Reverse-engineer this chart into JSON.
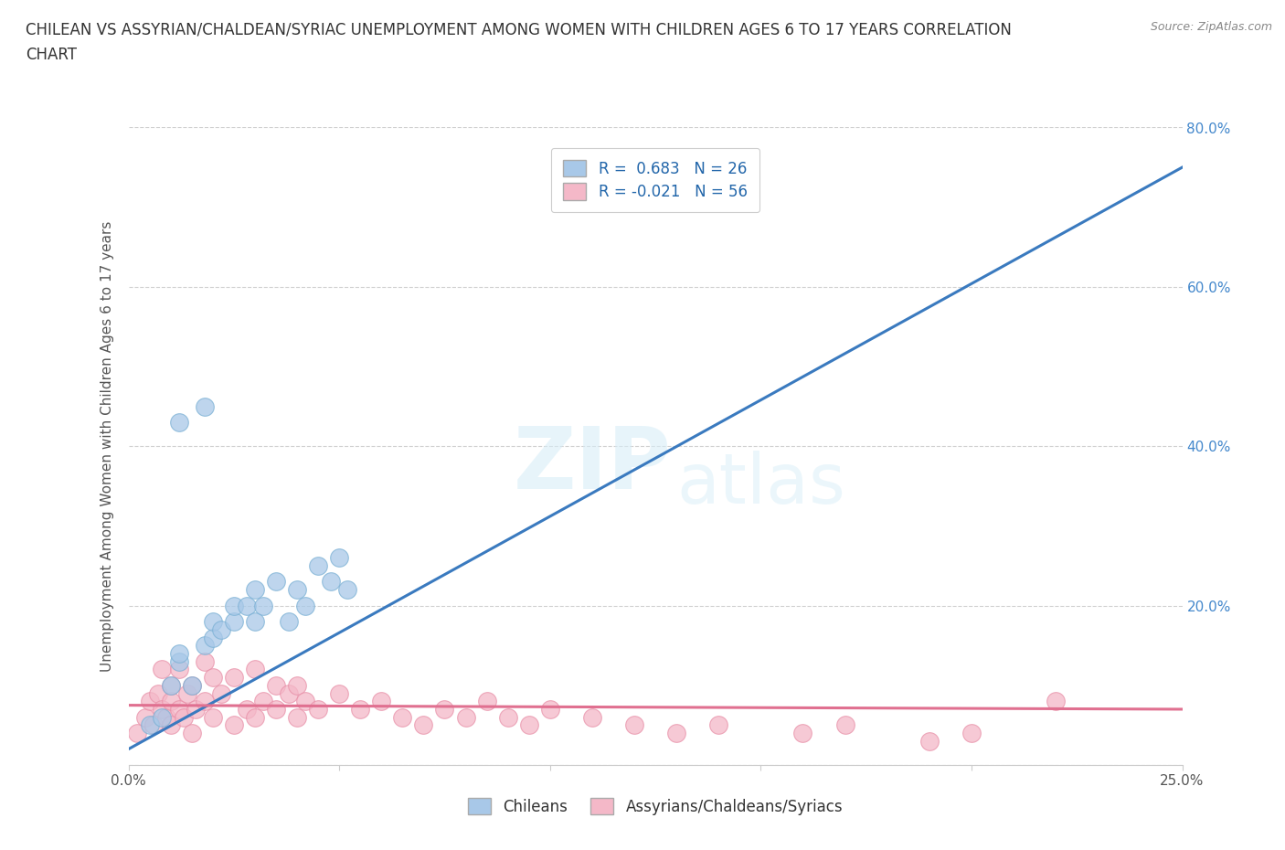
{
  "title_line1": "CHILEAN VS ASSYRIAN/CHALDEAN/SYRIAC UNEMPLOYMENT AMONG WOMEN WITH CHILDREN AGES 6 TO 17 YEARS CORRELATION",
  "title_line2": "CHART",
  "source": "Source: ZipAtlas.com",
  "ylabel": "Unemployment Among Women with Children Ages 6 to 17 years",
  "xlim": [
    0.0,
    0.25
  ],
  "ylim": [
    0.0,
    0.8
  ],
  "xticks": [
    0.0,
    0.05,
    0.1,
    0.15,
    0.2,
    0.25
  ],
  "xticklabels": [
    "0.0%",
    "",
    "",
    "",
    "",
    "25.0%"
  ],
  "yticks": [
    0.0,
    0.2,
    0.4,
    0.6,
    0.8
  ],
  "yticklabels": [
    "",
    "20.0%",
    "40.0%",
    "60.0%",
    "80.0%"
  ],
  "blue_color": "#a8c8e8",
  "pink_color": "#f4b8c8",
  "blue_edge_color": "#7ab0d4",
  "pink_edge_color": "#e890a8",
  "blue_line_color": "#3a7abf",
  "pink_line_color": "#e07090",
  "R_blue": 0.683,
  "N_blue": 26,
  "R_pink": -0.021,
  "N_pink": 56,
  "legend_label_blue": "Chileans",
  "legend_label_pink": "Assyrians/Chaldeans/Syriacs",
  "watermark_zip": "ZIP",
  "watermark_atlas": "atlas",
  "blue_scatter_x": [
    0.005,
    0.008,
    0.01,
    0.012,
    0.012,
    0.015,
    0.018,
    0.02,
    0.02,
    0.022,
    0.025,
    0.025,
    0.028,
    0.03,
    0.03,
    0.032,
    0.035,
    0.038,
    0.04,
    0.042,
    0.045,
    0.048,
    0.05,
    0.052,
    0.012,
    0.018
  ],
  "blue_scatter_y": [
    0.05,
    0.06,
    0.1,
    0.13,
    0.14,
    0.1,
    0.15,
    0.16,
    0.18,
    0.17,
    0.18,
    0.2,
    0.2,
    0.22,
    0.18,
    0.2,
    0.23,
    0.18,
    0.22,
    0.2,
    0.25,
    0.23,
    0.26,
    0.22,
    0.43,
    0.45
  ],
  "pink_scatter_x": [
    0.002,
    0.004,
    0.005,
    0.006,
    0.007,
    0.008,
    0.008,
    0.009,
    0.01,
    0.01,
    0.01,
    0.012,
    0.012,
    0.013,
    0.014,
    0.015,
    0.015,
    0.016,
    0.018,
    0.018,
    0.02,
    0.02,
    0.022,
    0.025,
    0.025,
    0.028,
    0.03,
    0.03,
    0.032,
    0.035,
    0.035,
    0.038,
    0.04,
    0.04,
    0.042,
    0.045,
    0.05,
    0.055,
    0.06,
    0.065,
    0.07,
    0.075,
    0.08,
    0.085,
    0.09,
    0.095,
    0.1,
    0.11,
    0.12,
    0.13,
    0.14,
    0.16,
    0.17,
    0.19,
    0.2,
    0.22
  ],
  "pink_scatter_y": [
    0.04,
    0.06,
    0.08,
    0.05,
    0.09,
    0.07,
    0.12,
    0.06,
    0.05,
    0.08,
    0.1,
    0.07,
    0.12,
    0.06,
    0.09,
    0.04,
    0.1,
    0.07,
    0.08,
    0.13,
    0.06,
    0.11,
    0.09,
    0.05,
    0.11,
    0.07,
    0.06,
    0.12,
    0.08,
    0.07,
    0.1,
    0.09,
    0.06,
    0.1,
    0.08,
    0.07,
    0.09,
    0.07,
    0.08,
    0.06,
    0.05,
    0.07,
    0.06,
    0.08,
    0.06,
    0.05,
    0.07,
    0.06,
    0.05,
    0.04,
    0.05,
    0.04,
    0.05,
    0.03,
    0.04,
    0.08
  ],
  "background_color": "#ffffff",
  "grid_color": "#d0d0d0",
  "blue_trend_x": [
    0.0,
    0.25
  ],
  "blue_trend_y": [
    0.02,
    0.75
  ],
  "pink_trend_x": [
    0.0,
    0.25
  ],
  "pink_trend_y": [
    0.075,
    0.07
  ]
}
